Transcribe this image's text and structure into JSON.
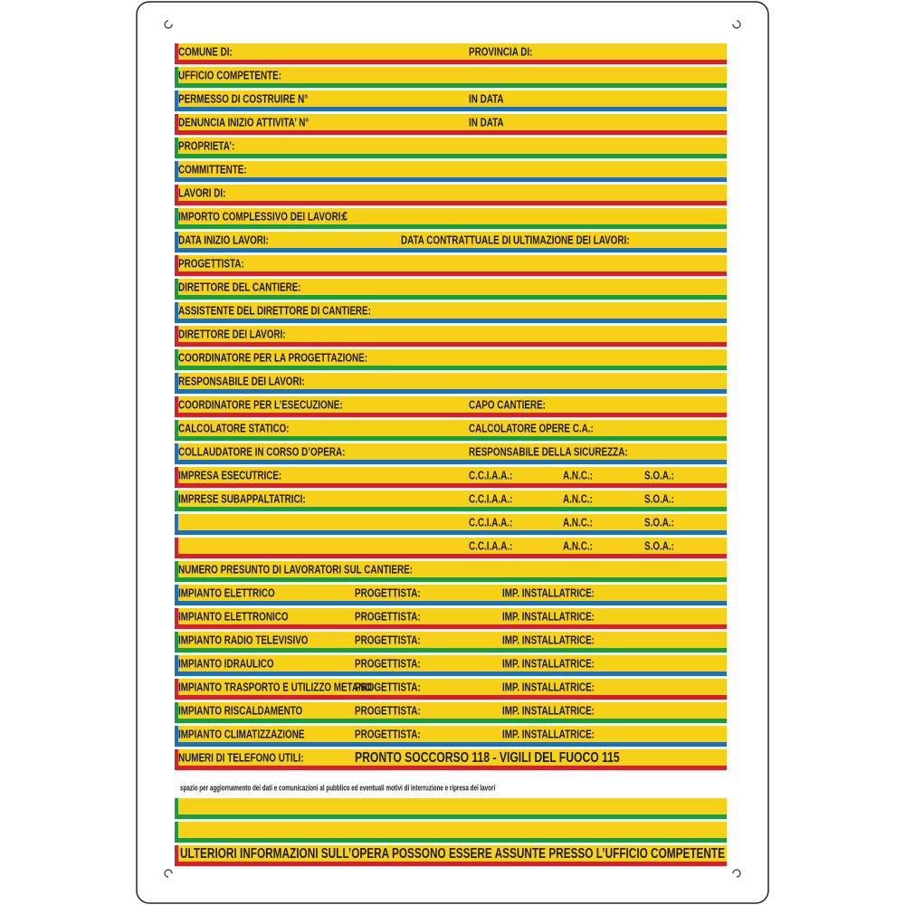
{
  "rows": [
    {
      "label": "COMUNE DI:",
      "right": "PROVINCIA DI:"
    },
    {
      "label": "UFFICIO COMPETENTE:"
    },
    {
      "label": "PERMESSO DI COSTRUIRE N°",
      "right": "IN DATA"
    },
    {
      "label": "DENUNCIA INIZIO ATTIVITA’ N°",
      "right": "IN DATA"
    },
    {
      "label": "PROPRIETA’:"
    },
    {
      "label": "COMMITTENTE:"
    },
    {
      "label": "LAVORI DI:"
    },
    {
      "label": "IMPORTO COMPLESSIVO DEI LAVORI:",
      "currency": "€"
    },
    {
      "label": "DATA INIZIO LAVORI:",
      "middle": "DATA CONTRATTUALE DI ULTIMAZIONE DEI LAVORI:"
    },
    {
      "label": "PROGETTISTA:"
    },
    {
      "label": "DIRETTORE DEL CANTIERE:"
    },
    {
      "label": "ASSISTENTE DEL DIRETTORE DI CANTIERE:"
    },
    {
      "label": "DIRETTORE DEI LAVORI:"
    },
    {
      "label": "COORDINATORE PER LA PROGETTAZIONE:"
    },
    {
      "label": "RESPONSABILE DEI LAVORI:"
    },
    {
      "label": "COORDINATORE PER L’ESECUZIONE:",
      "right": "CAPO CANTIERE:"
    },
    {
      "label": "CALCOLATORE STATICO:",
      "right": "CALCOLATORE OPERE C.A.:"
    },
    {
      "label": "COLLAUDATORE IN CORSO D’OPERA:",
      "right": "RESPONSABILE DELLA SICUREZZA:"
    },
    {
      "label": "IMPRESA ESECUTRICE:",
      "ccia": "C.C.I.A.A.:",
      "anc": "A.N.C.:",
      "soa": "S.O.A.:"
    },
    {
      "label": "IMPRESE SUBAPPALTATRICI:",
      "ccia": "C.C.I.A.A.:",
      "anc": "A.N.C.:",
      "soa": "S.O.A.:"
    },
    {
      "ccia": "C.C.I.A.A.:",
      "anc": "A.N.C.:",
      "soa": "S.O.A.:"
    },
    {
      "ccia": "C.C.I.A.A.:",
      "anc": "A.N.C.:",
      "soa": "S.O.A.:"
    },
    {
      "label": "NUMERO PRESUNTO DI LAVORATORI SUL CANTIERE:"
    },
    {
      "label": "IMPIANTO ELETTRICO",
      "designer": "PROGETTISTA:",
      "installer": "IMP. INSTALLATRICE:"
    },
    {
      "label": "IMPIANTO ELETTRONICO",
      "designer": "PROGETTISTA:",
      "installer": "IMP. INSTALLATRICE:"
    },
    {
      "label": "IMPIANTO RADIO TELEVISIVO",
      "designer": "PROGETTISTA:",
      "installer": "IMP. INSTALLATRICE:"
    },
    {
      "label": "IMPIANTO IDRAULICO",
      "designer": "PROGETTISTA:",
      "installer": "IMP. INSTALLATRICE:"
    },
    {
      "label": "IMPIANTO TRASPORTO E UTILIZZO METANO",
      "designer": "PROGETTISTA:",
      "installer": "IMP. INSTALLATRICE:"
    },
    {
      "label": "IMPIANTO RISCALDAMENTO",
      "designer": "PROGETTISTA:",
      "installer": "IMP. INSTALLATRICE:"
    },
    {
      "label": "IMPIANTO CLIMATIZZAZIONE",
      "designer": "PROGETTISTA:",
      "installer": "IMP. INSTALLATRICE:"
    },
    {
      "label": "NUMERI DI TELEFONO UTILI:",
      "phones": "PRONTO SOCCORSO 118 - VIGILI DEL FUOCO 115"
    }
  ],
  "note": "spazio per aggiornamento dei dati e comunicazioni al pubblico ed eventuali motivi di interruzione e ripresa dei lavori",
  "footer": "ULTERIORI INFORMAZIONI SULL’OPERA POSSONO ESSERE ASSUNTE PRESSO L’UFFICIO COMPETENTE"
}
